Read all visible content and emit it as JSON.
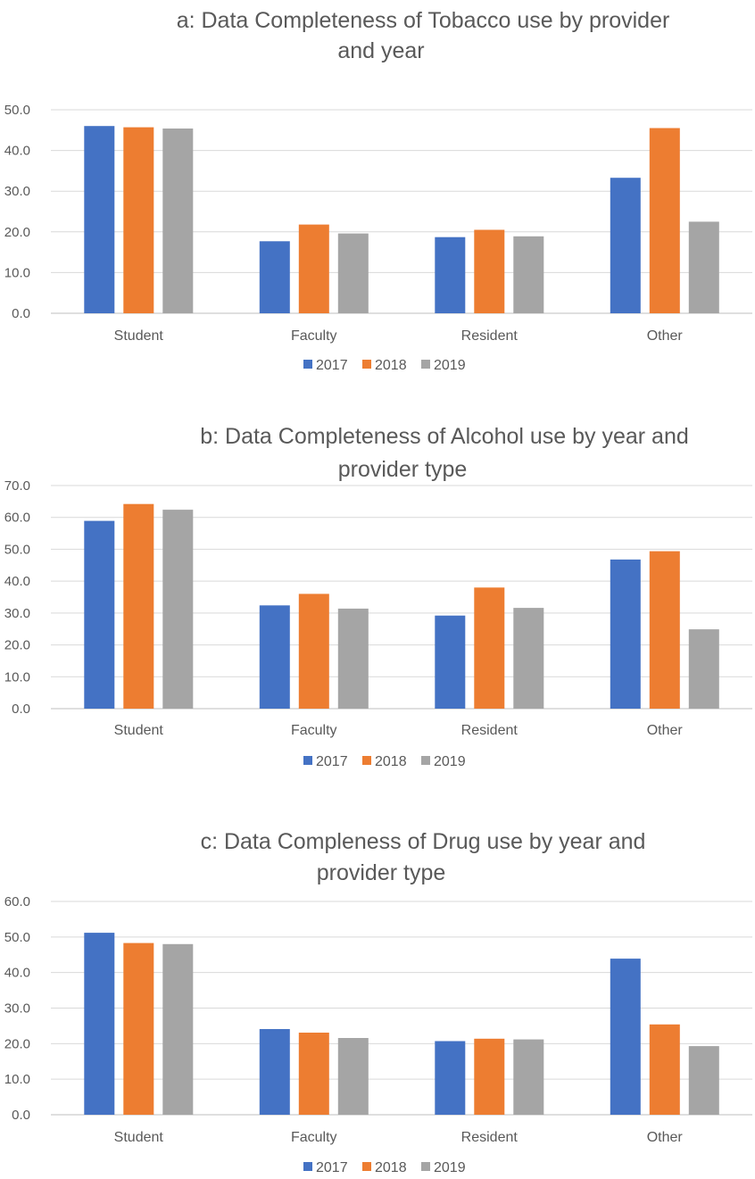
{
  "colors": {
    "s2017": "#4472c4",
    "s2018": "#ed7d31",
    "s2019": "#a5a5a5"
  },
  "chart_data": [
    {
      "type": "bar",
      "title_lines": [
        "a: Data Completeness of Tobacco use by provider",
        "and year"
      ],
      "categories": [
        "Student",
        "Faculty",
        "Resident",
        "Other"
      ],
      "series": [
        {
          "name": "2017",
          "values": [
            46.0,
            17.7,
            18.7,
            33.3
          ]
        },
        {
          "name": "2018",
          "values": [
            45.7,
            21.8,
            20.5,
            45.5
          ]
        },
        {
          "name": "2019",
          "values": [
            45.4,
            19.6,
            18.9,
            22.5
          ]
        }
      ],
      "ylim": [
        0,
        50
      ],
      "yticks": [
        "0.0",
        "10.0",
        "20.0",
        "30.0",
        "40.0",
        "50.0"
      ],
      "xlabel": "",
      "ylabel": "",
      "legend": "bottom",
      "grid": true
    },
    {
      "type": "bar",
      "title_lines": [
        "b: Data Completeness of Alcohol use by year and",
        "provider type"
      ],
      "categories": [
        "Student",
        "Faculty",
        "Resident",
        "Other"
      ],
      "series": [
        {
          "name": "2017",
          "values": [
            58.9,
            32.4,
            29.2,
            46.8
          ]
        },
        {
          "name": "2018",
          "values": [
            64.2,
            36.0,
            38.0,
            49.4
          ]
        },
        {
          "name": "2019",
          "values": [
            62.4,
            31.4,
            31.6,
            24.9
          ]
        }
      ],
      "ylim": [
        0,
        70
      ],
      "yticks": [
        "0.0",
        "10.0",
        "20.0",
        "30.0",
        "40.0",
        "50.0",
        "60.0",
        "70.0"
      ],
      "xlabel": "",
      "ylabel": "",
      "legend": "bottom",
      "grid": true
    },
    {
      "type": "bar",
      "title_lines": [
        "c: Data Compleness of Drug use by year and",
        "provider type"
      ],
      "categories": [
        "Student",
        "Faculty",
        "Resident",
        "Other"
      ],
      "series": [
        {
          "name": "2017",
          "values": [
            51.2,
            24.1,
            20.7,
            43.9
          ]
        },
        {
          "name": "2018",
          "values": [
            48.3,
            23.1,
            21.4,
            25.4
          ]
        },
        {
          "name": "2019",
          "values": [
            48.0,
            21.6,
            21.2,
            19.3
          ]
        }
      ],
      "ylim": [
        0,
        60
      ],
      "yticks": [
        "0.0",
        "10.0",
        "20.0",
        "30.0",
        "40.0",
        "50.0",
        "60.0"
      ],
      "xlabel": "",
      "ylabel": "",
      "legend": "bottom",
      "grid": true
    }
  ]
}
